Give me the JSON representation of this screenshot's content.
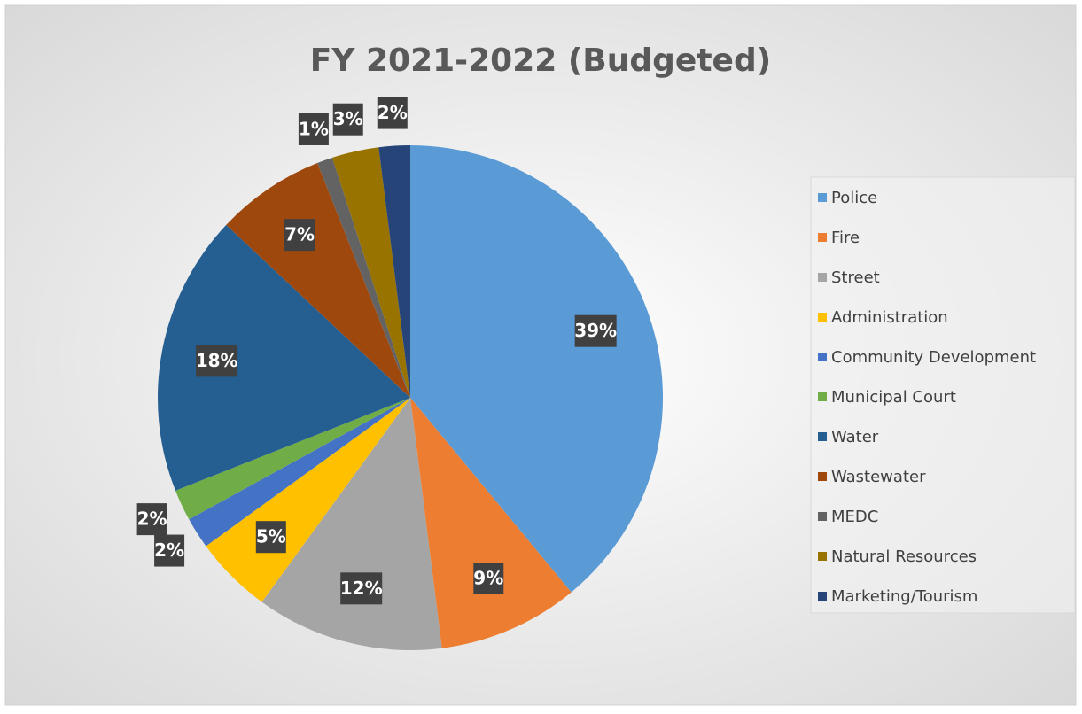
{
  "chart_data": {
    "type": "pie",
    "title": "FY 2021-2022 (Budgeted)",
    "categories": [
      "Police",
      "Fire",
      "Street",
      "Administration",
      "Community Development",
      "Municipal Court",
      "Water",
      "Wastewater",
      "MEDC",
      "Natural Resources",
      "Marketing/Tourism"
    ],
    "values": [
      39,
      9,
      12,
      5,
      2,
      2,
      18,
      7,
      1,
      3,
      2
    ],
    "value_labels": [
      "39%",
      "9%",
      "12%",
      "5%",
      "2%",
      "2%",
      "18%",
      "7%",
      "1%",
      "3%",
      "2%"
    ],
    "colors": [
      "#5b9bd5",
      "#ed7d31",
      "#a5a5a5",
      "#ffc000",
      "#4472c4",
      "#70ad47",
      "#255e91",
      "#9e480e",
      "#636363",
      "#997300",
      "#264478"
    ],
    "legend": "right"
  }
}
